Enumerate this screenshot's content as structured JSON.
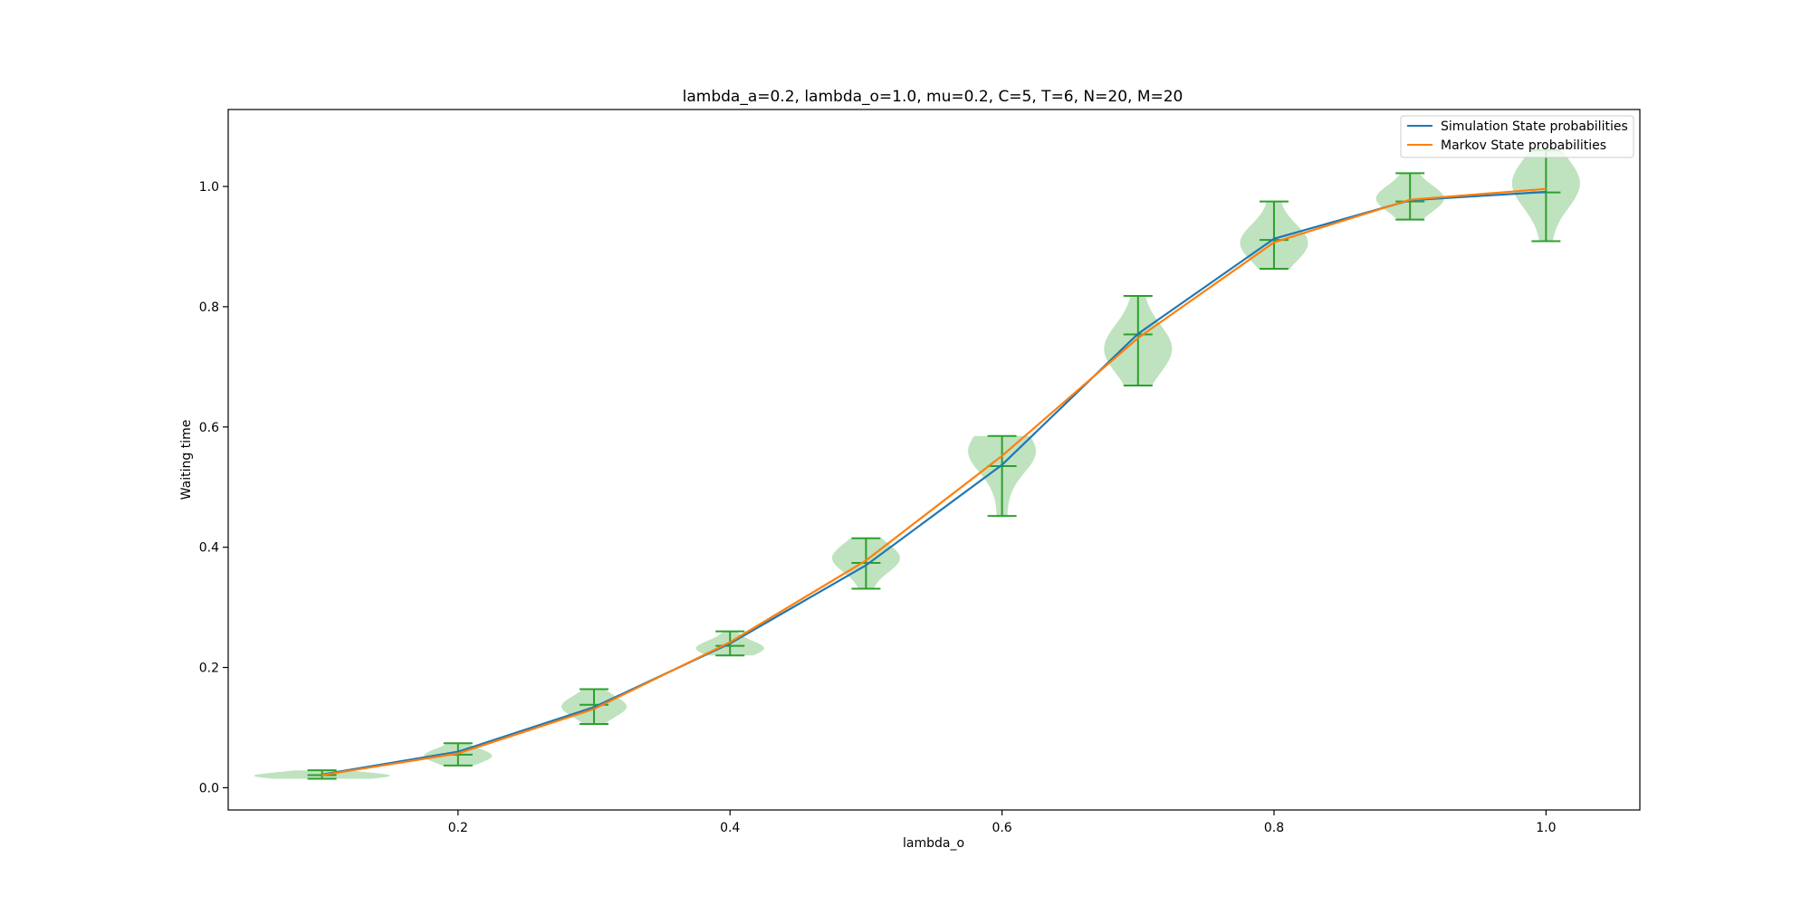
{
  "chart_data": {
    "type": "line",
    "title": "lambda_a=0.2, lambda_o=1.0, mu=0.2, C=5, T=6, N=20, M=20",
    "xlabel": "lambda_o",
    "ylabel": "Waiting time",
    "xlim": [
      0.031,
      1.069
    ],
    "ylim": [
      -0.037,
      1.128
    ],
    "x_ticks": [
      "0.2",
      "0.4",
      "0.6",
      "0.8",
      "1.0"
    ],
    "y_ticks": [
      "0.0",
      "0.2",
      "0.4",
      "0.6",
      "0.8",
      "1.0"
    ],
    "grid": false,
    "legend_position": "top-right",
    "x": [
      0.1,
      0.2,
      0.3,
      0.4,
      0.5,
      0.6,
      0.7,
      0.8,
      0.9,
      1.0
    ],
    "series": [
      {
        "name": "Simulation State probabilities",
        "color": "#1f77b4",
        "values": [
          0.022,
          0.06,
          0.134,
          0.24,
          0.37,
          0.537,
          0.755,
          0.913,
          0.977,
          0.991
        ]
      },
      {
        "name": "Markov State probabilities",
        "color": "#ff7f0e",
        "values": [
          0.021,
          0.057,
          0.131,
          0.242,
          0.378,
          0.552,
          0.748,
          0.907,
          0.978,
          0.996
        ]
      }
    ],
    "violins": {
      "color": "#2ca02c",
      "fill": "#2ca02c",
      "items": [
        {
          "x": 0.1,
          "min": 0.015,
          "max": 0.029,
          "mean": 0.021,
          "halfwidth": 0.05,
          "peak": 0.02
        },
        {
          "x": 0.2,
          "min": 0.037,
          "max": 0.074,
          "mean": 0.055,
          "halfwidth": 0.025,
          "peak": 0.053
        },
        {
          "x": 0.3,
          "min": 0.106,
          "max": 0.164,
          "mean": 0.138,
          "halfwidth": 0.024,
          "peak": 0.135
        },
        {
          "x": 0.4,
          "min": 0.22,
          "max": 0.26,
          "mean": 0.236,
          "halfwidth": 0.025,
          "peak": 0.232
        },
        {
          "x": 0.5,
          "min": 0.331,
          "max": 0.415,
          "mean": 0.374,
          "halfwidth": 0.025,
          "peak": 0.382
        },
        {
          "x": 0.6,
          "min": 0.452,
          "max": 0.585,
          "mean": 0.535,
          "halfwidth": 0.025,
          "peak": 0.56
        },
        {
          "x": 0.7,
          "min": 0.669,
          "max": 0.818,
          "mean": 0.754,
          "halfwidth": 0.025,
          "peak": 0.73
        },
        {
          "x": 0.8,
          "min": 0.863,
          "max": 0.975,
          "mean": 0.911,
          "halfwidth": 0.025,
          "peak": 0.906
        },
        {
          "x": 0.9,
          "min": 0.945,
          "max": 1.022,
          "mean": 0.975,
          "halfwidth": 0.025,
          "peak": 0.98
        },
        {
          "x": 1.0,
          "min": 0.909,
          "max": 1.06,
          "mean": 0.99,
          "halfwidth": 0.025,
          "peak": 1.005
        }
      ]
    }
  }
}
